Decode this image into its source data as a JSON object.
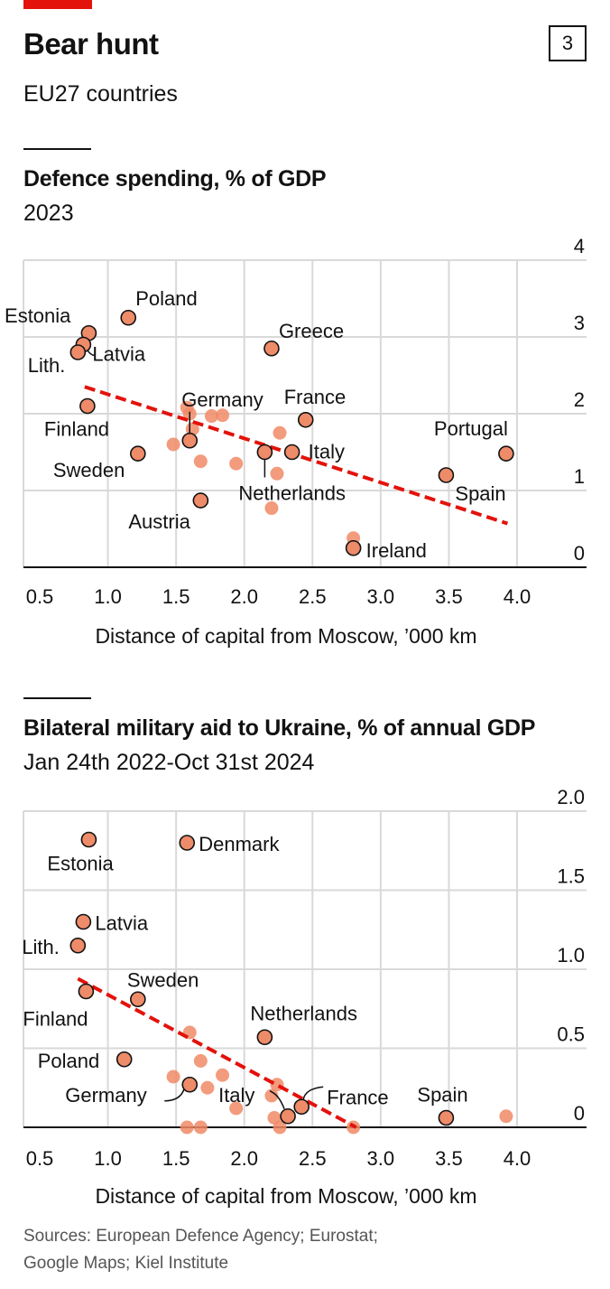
{
  "header": {
    "title": "Bear hunt",
    "subtitle": "EU27 countries",
    "chart_number": "3"
  },
  "panels": {
    "top": {
      "title": "Defence spending, % of GDP",
      "subtitle": "2023"
    },
    "bottom": {
      "title": "Bilateral military aid to Ukraine, % of annual GDP",
      "subtitle": "Jan 24th 2022-Oct 31st 2024"
    }
  },
  "footer": {
    "source_line1": "Sources: European Defence Agency; Eurostat;",
    "source_line2": "Google Maps; Kiel Institute"
  },
  "colors": {
    "labelled_point": "#ee8b69",
    "other_point": "#f08a66",
    "trend": "#e3120b",
    "axis": "#121212",
    "grid": "#d9d9d9",
    "accent_bar": "#e3120b"
  },
  "chart_data": [
    {
      "type": "scatter",
      "title": "Defence spending, % of GDP",
      "subtitle": "2023",
      "xlabel": "Distance of capital from Moscow, ’000 km",
      "ylabel": "",
      "xlim": [
        0.5,
        4.0
      ],
      "ylim": [
        0,
        4
      ],
      "x_ticks": [
        "0.5",
        "1.0",
        "1.5",
        "2.0",
        "2.5",
        "3.0",
        "3.5",
        "4.0"
      ],
      "y_ticks": [
        "0",
        "1",
        "2",
        "3",
        "4"
      ],
      "grid": true,
      "trend": {
        "from": [
          0.83,
          2.35
        ],
        "to": [
          3.93,
          0.57
        ]
      },
      "points": [
        {
          "x": 0.86,
          "y": 3.05,
          "label": "Estonia"
        },
        {
          "x": 1.15,
          "y": 3.25,
          "label": "Poland"
        },
        {
          "x": 0.82,
          "y": 2.9,
          "label": "Latvia"
        },
        {
          "x": 0.78,
          "y": 2.8,
          "label": "Lith."
        },
        {
          "x": 0.85,
          "y": 2.1,
          "label": "Finland"
        },
        {
          "x": 1.22,
          "y": 1.48,
          "label": "Sweden"
        },
        {
          "x": 1.6,
          "y": 1.65,
          "label": "Germany"
        },
        {
          "x": 1.68,
          "y": 0.87,
          "label": "Austria"
        },
        {
          "x": 2.2,
          "y": 2.85,
          "label": "Greece"
        },
        {
          "x": 2.45,
          "y": 1.92,
          "label": "France"
        },
        {
          "x": 2.35,
          "y": 1.5,
          "label": "Italy"
        },
        {
          "x": 2.15,
          "y": 1.5,
          "label": "Netherlands"
        },
        {
          "x": 3.48,
          "y": 1.2,
          "label": "Spain"
        },
        {
          "x": 3.92,
          "y": 1.48,
          "label": "Portugal"
        },
        {
          "x": 2.8,
          "y": 0.25,
          "label": "Ireland"
        },
        {
          "x": 1.58,
          "y": 2.08
        },
        {
          "x": 1.6,
          "y": 2.0
        },
        {
          "x": 1.62,
          "y": 1.8
        },
        {
          "x": 1.76,
          "y": 1.97
        },
        {
          "x": 1.84,
          "y": 1.98
        },
        {
          "x": 1.48,
          "y": 1.6
        },
        {
          "x": 1.68,
          "y": 1.38
        },
        {
          "x": 1.94,
          "y": 1.35
        },
        {
          "x": 2.26,
          "y": 1.75
        },
        {
          "x": 2.24,
          "y": 1.22
        },
        {
          "x": 2.2,
          "y": 0.77
        },
        {
          "x": 2.8,
          "y": 0.38
        }
      ]
    },
    {
      "type": "scatter",
      "title": "Bilateral military aid to Ukraine, % of annual GDP",
      "subtitle": "Jan 24th 2022-Oct 31st 2024",
      "xlabel": "Distance of capital from Moscow, ’000 km",
      "ylabel": "",
      "xlim": [
        0.5,
        4.0
      ],
      "ylim": [
        0,
        2.0
      ],
      "x_ticks": [
        "0.5",
        "1.0",
        "1.5",
        "2.0",
        "2.5",
        "3.0",
        "3.5",
        "4.0"
      ],
      "y_ticks": [
        "0",
        "0.5",
        "1.0",
        "1.5",
        "2.0"
      ],
      "grid": true,
      "trend": {
        "from": [
          0.78,
          0.94
        ],
        "to": [
          2.82,
          0.0
        ]
      },
      "points": [
        {
          "x": 0.86,
          "y": 1.82,
          "label": "Estonia"
        },
        {
          "x": 1.58,
          "y": 1.8,
          "label": "Denmark"
        },
        {
          "x": 0.82,
          "y": 1.3,
          "label": "Latvia"
        },
        {
          "x": 0.78,
          "y": 1.15,
          "label": "Lith."
        },
        {
          "x": 0.84,
          "y": 0.86,
          "label": "Finland"
        },
        {
          "x": 1.22,
          "y": 0.81,
          "label": "Sweden"
        },
        {
          "x": 1.12,
          "y": 0.43,
          "label": "Poland"
        },
        {
          "x": 1.6,
          "y": 0.27,
          "label": "Germany"
        },
        {
          "x": 2.15,
          "y": 0.57,
          "label": "Netherlands"
        },
        {
          "x": 2.32,
          "y": 0.07,
          "label": "Italy"
        },
        {
          "x": 2.42,
          "y": 0.13,
          "label": "France"
        },
        {
          "x": 3.48,
          "y": 0.06,
          "label": "Spain"
        },
        {
          "x": 1.6,
          "y": 0.6
        },
        {
          "x": 1.68,
          "y": 0.42
        },
        {
          "x": 1.48,
          "y": 0.32
        },
        {
          "x": 1.73,
          "y": 0.25
        },
        {
          "x": 1.84,
          "y": 0.33
        },
        {
          "x": 1.94,
          "y": 0.12
        },
        {
          "x": 2.2,
          "y": 0.2
        },
        {
          "x": 2.24,
          "y": 0.27
        },
        {
          "x": 2.22,
          "y": 0.06
        },
        {
          "x": 2.26,
          "y": 0.0
        },
        {
          "x": 1.58,
          "y": 0.0
        },
        {
          "x": 1.68,
          "y": 0.0
        },
        {
          "x": 2.8,
          "y": 0.0
        },
        {
          "x": 3.92,
          "y": 0.07
        }
      ]
    }
  ]
}
